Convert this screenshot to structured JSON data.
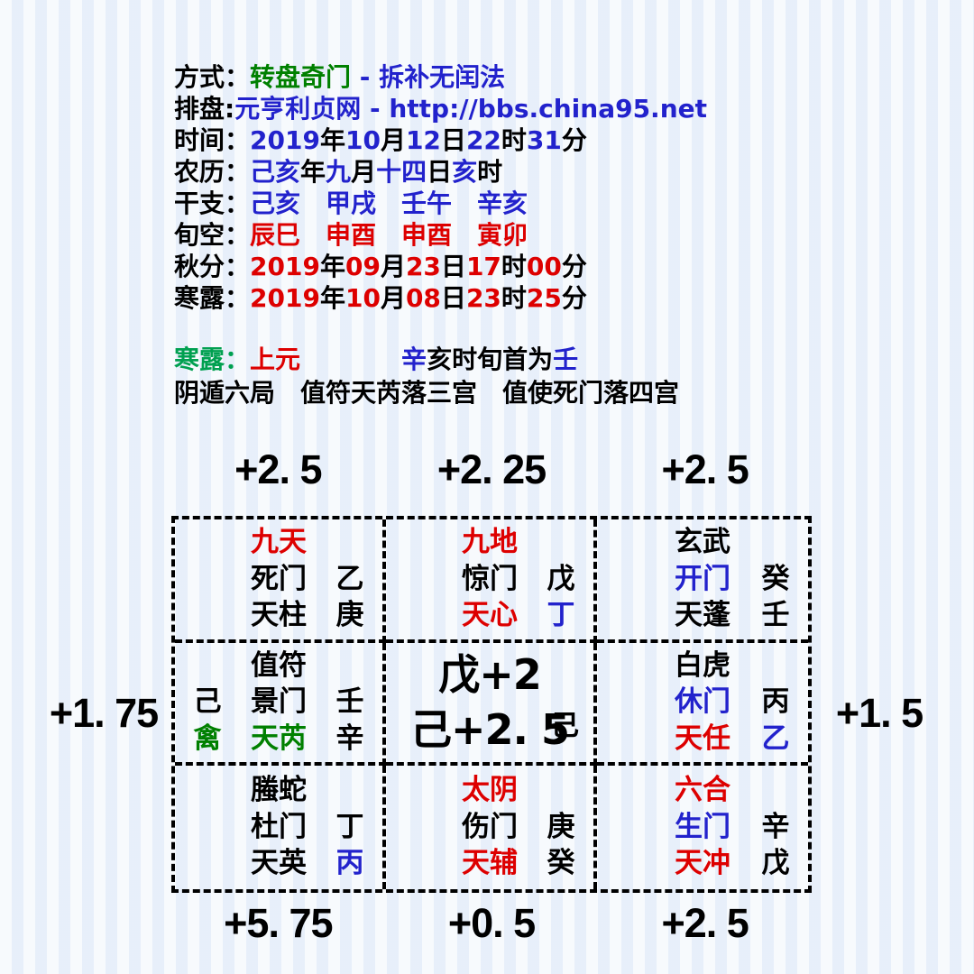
{
  "header": {
    "lines": [
      {
        "label": "方式：",
        "label_color": "#000000",
        "segments": [
          {
            "t": "转盘奇门",
            "c": "#008000"
          },
          {
            "t": " - ",
            "c": "#2222cc"
          },
          {
            "t": "拆补无闰法",
            "c": "#2222cc"
          }
        ]
      },
      {
        "label": "排盘:",
        "label_color": "#000000",
        "segments": [
          {
            "t": "元亨利贞网",
            "c": "#2222cc"
          },
          {
            "t": " - ",
            "c": "#2222cc"
          },
          {
            "t": "http://bbs.china95.net",
            "c": "#2222cc"
          }
        ]
      },
      {
        "label": "时间：",
        "label_color": "#000000",
        "segments": [
          {
            "t": "2019",
            "c": "#2222cc"
          },
          {
            "t": "年",
            "c": "#000000"
          },
          {
            "t": "10",
            "c": "#2222cc"
          },
          {
            "t": "月",
            "c": "#000000"
          },
          {
            "t": "12",
            "c": "#2222cc"
          },
          {
            "t": "日",
            "c": "#000000"
          },
          {
            "t": "22",
            "c": "#2222cc"
          },
          {
            "t": "时",
            "c": "#000000"
          },
          {
            "t": "31",
            "c": "#2222cc"
          },
          {
            "t": "分",
            "c": "#000000"
          }
        ]
      },
      {
        "label": "农历：",
        "label_color": "#000000",
        "segments": [
          {
            "t": "己亥",
            "c": "#2222cc"
          },
          {
            "t": "年",
            "c": "#000000"
          },
          {
            "t": "九",
            "c": "#2222cc"
          },
          {
            "t": "月",
            "c": "#000000"
          },
          {
            "t": "十四",
            "c": "#2222cc"
          },
          {
            "t": "日",
            "c": "#000000"
          },
          {
            "t": "亥",
            "c": "#2222cc"
          },
          {
            "t": "时",
            "c": "#000000"
          }
        ]
      },
      {
        "label": "干支：",
        "label_color": "#000000",
        "segments": [
          {
            "t": "己亥　甲戌　壬午　辛亥",
            "c": "#2222cc"
          }
        ]
      },
      {
        "label": "旬空：",
        "label_color": "#000000",
        "segments": [
          {
            "t": "辰巳　申酉　申酉　寅卯",
            "c": "#dd0000"
          }
        ]
      },
      {
        "label": "秋分：",
        "label_color": "#000000",
        "segments": [
          {
            "t": "2019",
            "c": "#dd0000"
          },
          {
            "t": "年",
            "c": "#000000"
          },
          {
            "t": "09",
            "c": "#dd0000"
          },
          {
            "t": "月",
            "c": "#000000"
          },
          {
            "t": "23",
            "c": "#dd0000"
          },
          {
            "t": "日",
            "c": "#000000"
          },
          {
            "t": "17",
            "c": "#dd0000"
          },
          {
            "t": "时",
            "c": "#000000"
          },
          {
            "t": "00",
            "c": "#dd0000"
          },
          {
            "t": "分",
            "c": "#000000"
          }
        ]
      },
      {
        "label": "寒露：",
        "label_color": "#000000",
        "segments": [
          {
            "t": "2019",
            "c": "#dd0000"
          },
          {
            "t": "年",
            "c": "#000000"
          },
          {
            "t": "10",
            "c": "#dd0000"
          },
          {
            "t": "月",
            "c": "#000000"
          },
          {
            "t": "08",
            "c": "#dd0000"
          },
          {
            "t": "日",
            "c": "#000000"
          },
          {
            "t": "23",
            "c": "#dd0000"
          },
          {
            "t": "时",
            "c": "#000000"
          },
          {
            "t": "25",
            "c": "#dd0000"
          },
          {
            "t": "分",
            "c": "#000000"
          }
        ]
      }
    ]
  },
  "summary": {
    "line1_label": "寒露：",
    "line1_label_color": "#00a050",
    "line1_segments": [
      {
        "t": "上元",
        "c": "#dd0000"
      },
      {
        "t": "　　　　",
        "c": "#000000"
      },
      {
        "t": "辛",
        "c": "#2222cc"
      },
      {
        "t": "亥时旬首为",
        "c": "#000000"
      },
      {
        "t": "壬",
        "c": "#2222cc"
      }
    ],
    "line2": "阴遁六局　值符天芮落三宫　值使死门落四宫"
  },
  "scores": {
    "top": [
      "+2. 5",
      "+2. 25",
      "+2. 5"
    ],
    "left": "+1. 75",
    "right": "+1. 5",
    "bottom": [
      "+5. 75",
      "+0. 5",
      "+2. 5"
    ]
  },
  "grid": {
    "cells": [
      {
        "deity": {
          "t": "九天",
          "c": "#dd0000"
        },
        "left1": {
          "t": "",
          "c": "#000000"
        },
        "gate": {
          "t": "死门",
          "c": "#000000"
        },
        "stem1": {
          "t": "乙",
          "c": "#000000"
        },
        "left2": {
          "t": "",
          "c": "#000000"
        },
        "star": {
          "t": "天柱",
          "c": "#000000"
        },
        "stem2": {
          "t": "庚",
          "c": "#000000"
        }
      },
      {
        "deity": {
          "t": "九地",
          "c": "#dd0000"
        },
        "left1": {
          "t": "",
          "c": "#000000"
        },
        "gate": {
          "t": "惊门",
          "c": "#000000"
        },
        "stem1": {
          "t": "戊",
          "c": "#000000"
        },
        "left2": {
          "t": "",
          "c": "#000000"
        },
        "star": {
          "t": "天心",
          "c": "#dd0000"
        },
        "stem2": {
          "t": "丁",
          "c": "#2222cc"
        }
      },
      {
        "deity": {
          "t": "玄武",
          "c": "#000000"
        },
        "left1": {
          "t": "",
          "c": "#000000"
        },
        "gate": {
          "t": "开门",
          "c": "#2222cc"
        },
        "stem1": {
          "t": "癸",
          "c": "#000000"
        },
        "left2": {
          "t": "",
          "c": "#000000"
        },
        "star": {
          "t": "天蓬",
          "c": "#000000"
        },
        "stem2": {
          "t": "壬",
          "c": "#000000"
        }
      },
      {
        "deity": {
          "t": "值符",
          "c": "#000000"
        },
        "left1": {
          "t": "己",
          "c": "#000000"
        },
        "gate": {
          "t": "景门",
          "c": "#000000"
        },
        "stem1": {
          "t": "壬",
          "c": "#000000"
        },
        "left2": {
          "t": "禽",
          "c": "#008000"
        },
        "star": {
          "t": "天芮",
          "c": "#008000"
        },
        "stem2": {
          "t": "辛",
          "c": "#000000"
        }
      },
      {
        "deity": {
          "t": "白虎",
          "c": "#000000"
        },
        "left1": {
          "t": "",
          "c": "#000000"
        },
        "gate": {
          "t": "休门",
          "c": "#2222cc"
        },
        "stem1": {
          "t": "丙",
          "c": "#000000"
        },
        "left2": {
          "t": "",
          "c": "#000000"
        },
        "star": {
          "t": "天任",
          "c": "#dd0000"
        },
        "stem2": {
          "t": "乙",
          "c": "#2222cc"
        }
      },
      {
        "deity": {
          "t": "螣蛇",
          "c": "#000000"
        },
        "left1": {
          "t": "",
          "c": "#000000"
        },
        "gate": {
          "t": "杜门",
          "c": "#000000"
        },
        "stem1": {
          "t": "丁",
          "c": "#000000"
        },
        "left2": {
          "t": "",
          "c": "#000000"
        },
        "star": {
          "t": "天英",
          "c": "#000000"
        },
        "stem2": {
          "t": "丙",
          "c": "#2222cc"
        }
      },
      {
        "deity": {
          "t": "太阴",
          "c": "#dd0000"
        },
        "left1": {
          "t": "",
          "c": "#000000"
        },
        "gate": {
          "t": "伤门",
          "c": "#000000"
        },
        "stem1": {
          "t": "庚",
          "c": "#000000"
        },
        "left2": {
          "t": "",
          "c": "#000000"
        },
        "star": {
          "t": "天辅",
          "c": "#dd0000"
        },
        "stem2": {
          "t": "癸",
          "c": "#000000"
        }
      },
      {
        "deity": {
          "t": "六合",
          "c": "#dd0000"
        },
        "left1": {
          "t": "",
          "c": "#000000"
        },
        "gate": {
          "t": "生门",
          "c": "#2222cc"
        },
        "stem1": {
          "t": "辛",
          "c": "#000000"
        },
        "left2": {
          "t": "",
          "c": "#000000"
        },
        "star": {
          "t": "天冲",
          "c": "#dd0000"
        },
        "stem2": {
          "t": "戊",
          "c": "#000000"
        }
      }
    ],
    "center": {
      "line1": "戊+2",
      "line2": "己+2. 5",
      "stem": "己",
      "color": "#000000"
    }
  }
}
